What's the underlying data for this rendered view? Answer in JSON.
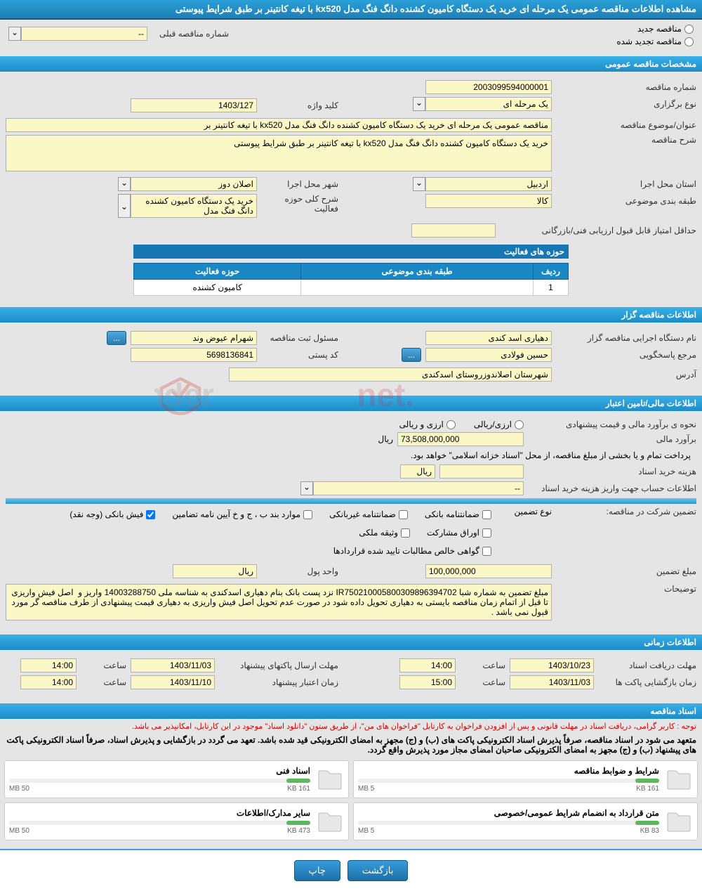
{
  "header": {
    "title": "مشاهده اطلاعات مناقصه عمومی یک مرحله ای خرید یک دستگاه کامیون کشنده دانگ فنگ مدل kx520 با تیغه کانتینر بر طبق شرایط پیوستی"
  },
  "tender_status": {
    "new_label": "مناقصه جدید",
    "renewed_label": "مناقصه تجدید شده",
    "prev_label": "شماره مناقصه قبلی",
    "prev_value": "--"
  },
  "sections": {
    "general": "مشخصات مناقصه عمومی",
    "organizer": "اطلاعات مناقصه گزار",
    "finance": "اطلاعات مالی/تامین اعتبار",
    "time": "اطلاعات زمانی",
    "docs": "اسناد مناقصه"
  },
  "general": {
    "tender_no_lbl": "شماره مناقصه",
    "tender_no": "2003099594000001",
    "type_lbl": "نوع برگزاری",
    "type": "یک مرحله ای",
    "key_lbl": "کلید واژه",
    "key": "1403/127",
    "title_lbl": "عنوان/موضوع مناقصه",
    "title": "مناقصه عمومی یک مرحله ای خرید یک دستگاه کامیون کشنده دانگ فنگ مدل kx520 با تیغه کانتینر بر",
    "desc_lbl": "شرح مناقصه",
    "desc": "خرید یک دستگاه کامیون کشنده دانگ فنگ مدل kx520 با تیغه کانتینر بر طبق شرایط پیوستی",
    "province_lbl": "استان محل اجرا",
    "province": "اردبیل",
    "city_lbl": "شهر محل اجرا",
    "city": "اصلان دوز",
    "cat_lbl": "طبقه بندی موضوعی",
    "cat": "کالا",
    "scope_lbl": "شرح کلی حوزه فعالیت",
    "scope": "خرید یک دستگاه کامیون کشنده دانگ فنگ مدل",
    "minscore_lbl": "حداقل امتیاز قابل قبول ارزیابی فنی/بازرگانی",
    "minscore": "",
    "activity_hdr": "حوزه های فعالیت",
    "col_row": "ردیف",
    "col_cat": "طبقه بندی موضوعی",
    "col_act": "حوزه فعالیت",
    "row_idx": "1",
    "row_cat": "",
    "row_act": "کامیون کشنده"
  },
  "organizer": {
    "exec_lbl": "نام دستگاه اجرایی مناقصه گزار",
    "exec": "دهیاری اسد کندی",
    "reg_lbl": "مسئول ثبت مناقصه",
    "reg": "شهرام عیوض وند",
    "resp_lbl": "مرجع پاسخگویی",
    "resp": "حسین فولادی",
    "post_lbl": "کد پستی",
    "post": "5698136841",
    "addr_lbl": "آدرس",
    "addr": "شهرستان اصلاندوزروستای اسدکندی"
  },
  "finance": {
    "method_lbl": "نحوه ی برآورد مالی و قیمت پیشنهادی",
    "method": "ارزی/ریالی",
    "method2": "ارزی و ریالی",
    "est_lbl": "برآورد مالی",
    "est": "73,508,000,000",
    "unit": "ریال",
    "pay_note": "پرداخت تمام و یا بخشی از مبلغ مناقصه، از محل \"اسناد خزانه اسلامی\" خواهد بود.",
    "buycost_lbl": "هزینه خرید اسناد",
    "buycost": "",
    "buycost_unit": "ریال",
    "account_lbl": "اطلاعات حساب جهت واریز هزینه خرید اسناد",
    "account": "--",
    "guarantee_lbl": "تضمین شرکت در مناقصه:",
    "guarantee_type_lbl": "نوع تضمین",
    "chk_bank": "ضمانتنامه بانکی",
    "chk_nonbank": "ضمانتنامه غیربانکی",
    "chk_regs": "موارد بند ب ، ج و خ آیین نامه تضامین",
    "chk_cash": "فیش بانکی (وجه نقد)",
    "chk_bonds": "اوراق مشارکت",
    "chk_prop": "وثیقه ملکی",
    "chk_cert": "گواهی خالص مطالبات تایید شده قراردادها",
    "amount_lbl": "مبلغ تضمین",
    "amount": "100,000,000",
    "amount_unit_lbl": "واحد پول",
    "amount_unit": "ریال",
    "notes_lbl": "توضیحات",
    "notes": "مبلغ تضمین به شماره شبا IR750210005800309896394702 نزد پست بانک بنام دهیاری اسدکندی به شناسه ملی 14003288750 واریز و  اصل فیش واریزی تا قبل از اتمام زمان مناقصه بایستی به دهیاری تحویل داده شود در صورت عدم تحویل اصل فیش واریزی به دهیاری قیمت پیشنهادی از طرف مناقصه گر مورد قبول نمی باشد ."
  },
  "time": {
    "recv_lbl": "مهلت دریافت اسناد",
    "recv_date": "1403/10/23",
    "recv_time": "14:00",
    "send_lbl": "مهلت ارسال پاکتهای پیشنهاد",
    "send_date": "1403/11/03",
    "send_time": "14:00",
    "open_lbl": "زمان بازگشایی پاکت ها",
    "open_date": "1403/11/03",
    "open_time": "15:00",
    "valid_lbl": "زمان اعتبار پیشنهاد",
    "valid_date": "1403/11/10",
    "valid_time": "14:00",
    "time_lbl": "ساعت"
  },
  "docs": {
    "note1": "توجه : کاربر گرامی، دریافت اسناد در مهلت قانونی و پس از افزودن فراخوان به کارتابل \"فراخوان های من\"، از طریق ستون \"دانلود اسناد\" موجود در این کارتابل، امکانپذیر می باشد.",
    "note2": "متعهد می شود در اسناد مناقصه، صرفاً پذیرش اسناد الکترونیکی پاکت های (ب) و (ج) مجهز به امضای الکترونیکی قید شده باشد. تعهد می گردد در بازگشایی و پذیرش اسناد، صرفاً اسناد الکترونیکی پاکت های پیشنهاد (ب) و (ج) مجهز به امضای الکترونیکی صاحبان امضای مجاز مورد پذیرش واقع گردد.",
    "items": [
      {
        "title": "شرایط و ضوابط مناقصه",
        "size": "161 KB",
        "max": "5 MB"
      },
      {
        "title": "اسناد فنی",
        "size": "161 KB",
        "max": "50 MB"
      },
      {
        "title": "متن قرارداد به انضمام شرایط عمومی/خصوصی",
        "size": "83 KB",
        "max": "5 MB"
      },
      {
        "title": "سایر مدارک/اطلاعات",
        "size": "473 KB",
        "max": "50 MB"
      }
    ]
  },
  "buttons": {
    "back": "بازگشت",
    "print": "چاپ",
    "dots": "..."
  },
  "colors": {
    "header_grad_a": "#2aa0d8",
    "header_grad_b": "#1e7fb6",
    "field_bg": "#fbf8c8",
    "btn_bg": "#3a9bd8"
  }
}
